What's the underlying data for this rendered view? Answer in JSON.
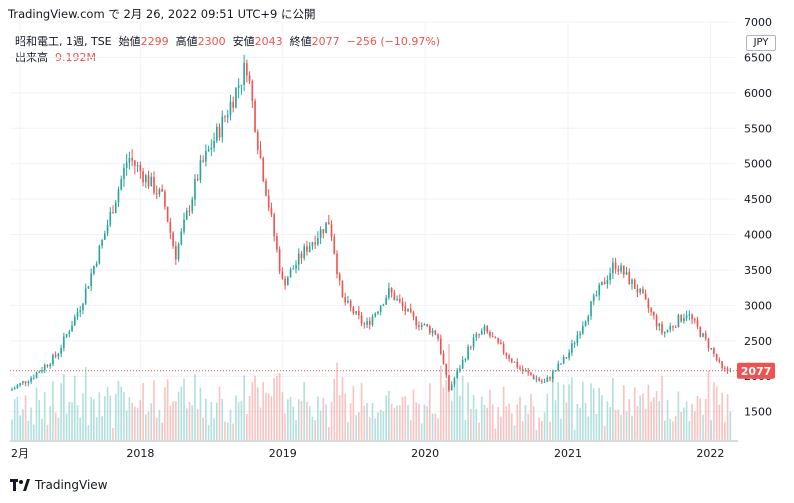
{
  "header": {
    "publish_line": "TradingView.com で 2月 26, 2022 09:51 UTC+9 に公開"
  },
  "legend": {
    "symbol": "昭和電工, 1週, TSE",
    "open_label": "始値",
    "open_value": "2299",
    "high_label": "高値",
    "high_value": "2300",
    "low_label": "安値",
    "low_value": "2043",
    "close_label": "終値",
    "close_value": "2077",
    "change": "−256 (−10.97%)",
    "volume_label": "出来高",
    "volume_value": "9.192M"
  },
  "price_axis": {
    "currency": "JPY",
    "last_price_badge": "2077"
  },
  "footer": {
    "brand": "TradingView"
  },
  "colors": {
    "up": "#26a69a",
    "down": "#ef5350",
    "grid": "#f0f3fa",
    "last_line": "#ef5350"
  },
  "chart_data": {
    "type": "candlestick",
    "interval": "1 week",
    "y_ticks": [
      "1500",
      "2000",
      "2500",
      "3000",
      "3500",
      "4000",
      "4500",
      "5000",
      "5500",
      "6000",
      "6500",
      "7000"
    ],
    "y_range": [
      1100,
      7000
    ],
    "x_ticks": [
      "2月",
      "2018",
      "2019",
      "2020",
      "2021",
      "2022"
    ],
    "last_close": 2077,
    "price_path": [
      {
        "date": "2017-02",
        "close": 1800
      },
      {
        "date": "2017-04",
        "close": 2000
      },
      {
        "date": "2017-06",
        "close": 2300
      },
      {
        "date": "2017-08",
        "close": 3000
      },
      {
        "date": "2017-10",
        "close": 4000
      },
      {
        "date": "2017-12",
        "close": 5100
      },
      {
        "date": "2018-03",
        "close": 4500
      },
      {
        "date": "2018-04",
        "close": 3700
      },
      {
        "date": "2018-06",
        "close": 4900
      },
      {
        "date": "2018-08",
        "close": 5600
      },
      {
        "date": "2018-10",
        "close": 6400
      },
      {
        "date": "2018-11",
        "close": 5200
      },
      {
        "date": "2019-01",
        "close": 3300
      },
      {
        "date": "2019-03",
        "close": 3800
      },
      {
        "date": "2019-05",
        "close": 4200
      },
      {
        "date": "2019-06",
        "close": 3100
      },
      {
        "date": "2019-08",
        "close": 2700
      },
      {
        "date": "2019-10",
        "close": 3200
      },
      {
        "date": "2019-12",
        "close": 2800
      },
      {
        "date": "2020-02",
        "close": 2600
      },
      {
        "date": "2020-03",
        "close": 1800
      },
      {
        "date": "2020-05",
        "close": 2500
      },
      {
        "date": "2020-06",
        "close": 2650
      },
      {
        "date": "2020-09",
        "close": 2100
      },
      {
        "date": "2020-11",
        "close": 1900
      },
      {
        "date": "2021-01",
        "close": 2300
      },
      {
        "date": "2021-03",
        "close": 3000
      },
      {
        "date": "2021-05",
        "close": 3600
      },
      {
        "date": "2021-07",
        "close": 3200
      },
      {
        "date": "2021-09",
        "close": 2600
      },
      {
        "date": "2021-11",
        "close": 2900
      },
      {
        "date": "2022-01",
        "close": 2400
      },
      {
        "date": "2022-02",
        "close": 2077
      }
    ]
  }
}
